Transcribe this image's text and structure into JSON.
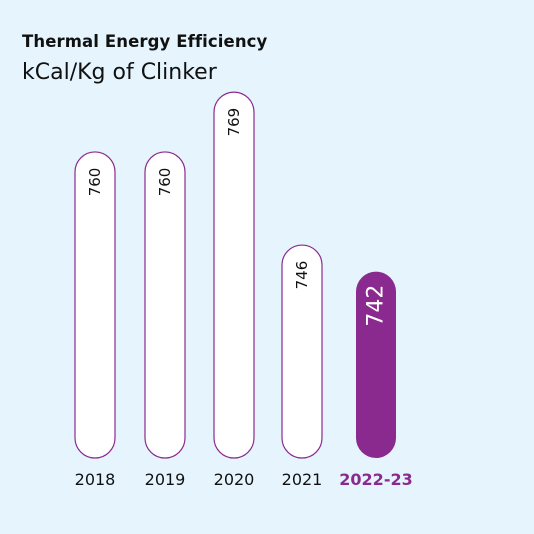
{
  "title": "Thermal Energy Efficiency",
  "subtitle": "kCal/Kg of Clinker",
  "colors": {
    "background": "#e6f5fd",
    "bar_fill": "#ffffff",
    "bar_outline": "#8b2a8e",
    "highlight": "#8b2a8e",
    "text": "#111111"
  },
  "chart_data": {
    "type": "bar",
    "categories": [
      "2018",
      "2019",
      "2020",
      "2021",
      "2022-23"
    ],
    "values": [
      760,
      760,
      769,
      746,
      742
    ],
    "highlight_index": 4,
    "data_labels": [
      "760",
      "760",
      "769",
      "746",
      "742"
    ],
    "title": "Thermal Energy Efficiency",
    "subtitle": "kCal/Kg of Clinker",
    "xlabel": "",
    "ylabel": "",
    "grid": false,
    "legend": "none"
  }
}
